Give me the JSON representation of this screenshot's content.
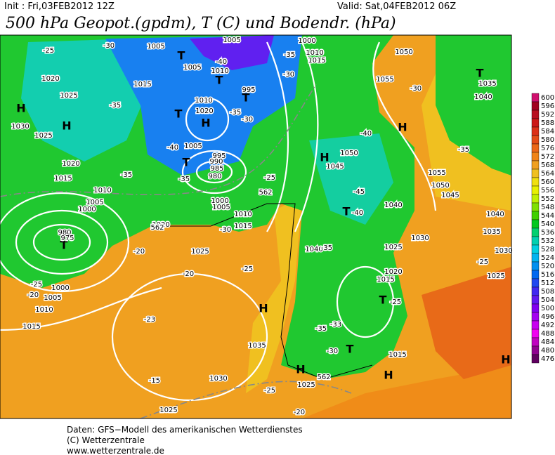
{
  "header": {
    "init": "Init : Fri,03FEB2012 12Z",
    "valid": "Valid: Sat,04FEB2012 06Z",
    "title": "500 hPa Geopot.(gpdm), T (C) und Bodendr. (hPa)"
  },
  "legend": {
    "levels": [
      600,
      596,
      592,
      588,
      584,
      580,
      576,
      572,
      568,
      564,
      560,
      556,
      552,
      548,
      544,
      540,
      536,
      532,
      528,
      524,
      520,
      516,
      512,
      508,
      504,
      500,
      496,
      492,
      488,
      484,
      480,
      476
    ],
    "colors": [
      "#d0106e",
      "#a00020",
      "#b81020",
      "#cc1818",
      "#dc3018",
      "#e44c18",
      "#ec6818",
      "#f08418",
      "#f0a020",
      "#f0c020",
      "#f0e010",
      "#e8f000",
      "#c0f000",
      "#80e000",
      "#40d000",
      "#00c820",
      "#00d070",
      "#00d0b0",
      "#00d0e0",
      "#00b4f0",
      "#0090f0",
      "#0068f0",
      "#2048f0",
      "#4028f0",
      "#6018f0",
      "#8000f0",
      "#a400f0",
      "#c800f0",
      "#f000f0",
      "#c000c0",
      "#900090",
      "#600060"
    ]
  },
  "labels": [
    "H",
    "H",
    "H",
    "H",
    "H",
    "H",
    "H",
    "H",
    "H",
    "T",
    "T",
    "T",
    "T",
    "T",
    "T",
    "T",
    "T",
    "T",
    "T",
    "1005",
    "1005",
    "1020",
    "1025",
    "1030",
    "1025",
    "1020",
    "1015",
    "1010",
    "1005",
    "1000",
    "1015",
    "1005",
    "1010",
    "1010",
    "1020",
    "995",
    "1005",
    "995",
    "990",
    "985",
    "980",
    "1000",
    "1005",
    "1010",
    "1015",
    "1020",
    "1025",
    "980",
    "975",
    "1000",
    "1005",
    "1010",
    "1015",
    "1035",
    "1030",
    "1025",
    "1025",
    "1050",
    "1045",
    "1040",
    "1040",
    "1025",
    "1030",
    "1020",
    "1015",
    "1015",
    "1055",
    "1050",
    "1055",
    "1050",
    "1045",
    "1040",
    "1035",
    "1030",
    "1025",
    "1035",
    "1040",
    "1010",
    "1015",
    "1000",
    "-25",
    "-30",
    "-35",
    "-40",
    "-35",
    "-35",
    "-30",
    "-25",
    "-35",
    "-30",
    "-40",
    "-35",
    "-30",
    "-30",
    "-40",
    "-45",
    "-40",
    "-35",
    "-35",
    "-25",
    "-33",
    "-35",
    "-30",
    "-25",
    "-20",
    "-20",
    "-25",
    "-20",
    "-23",
    "-15",
    "-25",
    "-20",
    "-25",
    "562",
    "562",
    "562"
  ],
  "footer": [
    "Daten: GFS−Modell des amerikanischen Wetterdienstes",
    "(C) Wetterzentrale",
    "www.wetterzentrale.de"
  ]
}
